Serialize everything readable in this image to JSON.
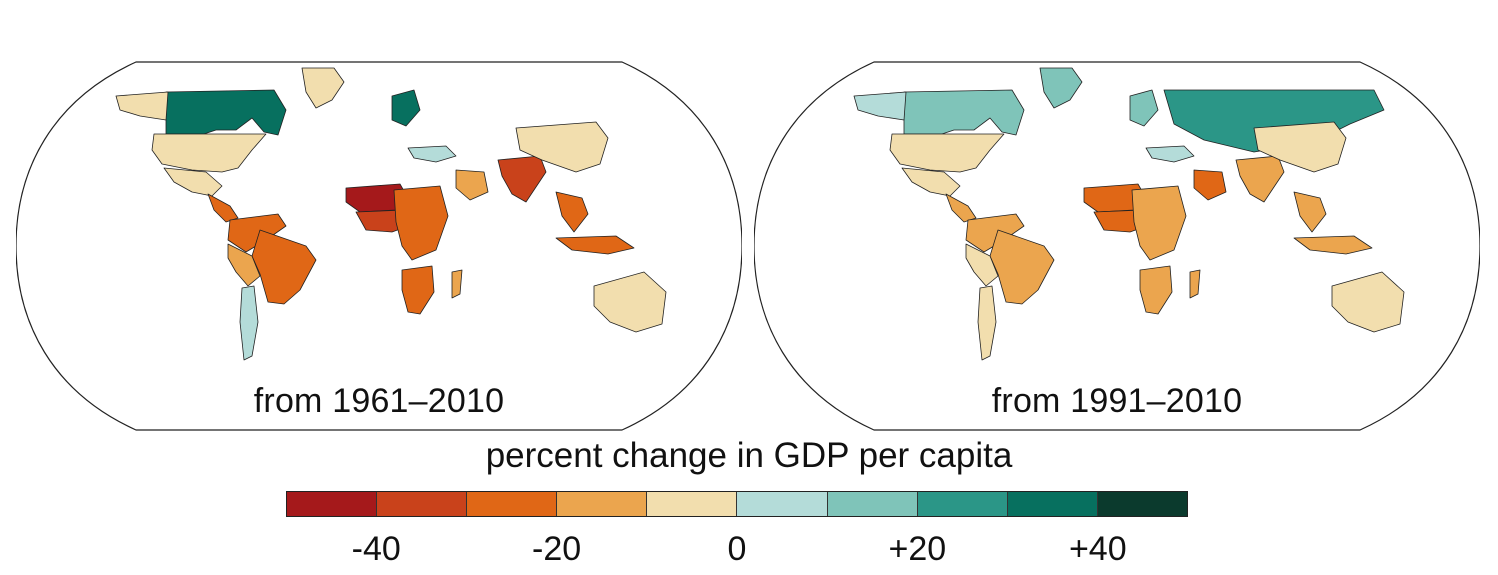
{
  "panels": [
    {
      "label": "from 1961–2010",
      "regions": [
        {
          "name": "Canada",
          "bin": 8
        },
        {
          "name": "Greenland",
          "bin": 4
        },
        {
          "name": "Alaska",
          "bin": 4
        },
        {
          "name": "United States",
          "bin": 4
        },
        {
          "name": "Mexico",
          "bin": 4
        },
        {
          "name": "Central America",
          "bin": 2
        },
        {
          "name": "Northern South America",
          "bin": 2
        },
        {
          "name": "Brazil",
          "bin": 2
        },
        {
          "name": "Andes",
          "bin": 3
        },
        {
          "name": "Chile/Argentina strip",
          "bin": 5
        },
        {
          "name": "Northern Europe",
          "bin": 8
        },
        {
          "name": "Southeast Europe",
          "bin": 5
        },
        {
          "name": "West Africa Sahel",
          "bin": 0
        },
        {
          "name": "West Africa coast",
          "bin": 1
        },
        {
          "name": "Central Africa",
          "bin": 2
        },
        {
          "name": "Southern Africa",
          "bin": 2
        },
        {
          "name": "Madagascar",
          "bin": 3
        },
        {
          "name": "Arabia",
          "bin": 3
        },
        {
          "name": "India",
          "bin": 1
        },
        {
          "name": "China",
          "bin": 4
        },
        {
          "name": "Southeast Asia",
          "bin": 2
        },
        {
          "name": "Indonesia",
          "bin": 2
        },
        {
          "name": "Australia",
          "bin": 4
        }
      ]
    },
    {
      "label": "from 1991–2010",
      "regions": [
        {
          "name": "Canada",
          "bin": 6
        },
        {
          "name": "Greenland",
          "bin": 6
        },
        {
          "name": "Alaska",
          "bin": 5
        },
        {
          "name": "United States",
          "bin": 4
        },
        {
          "name": "Mexico",
          "bin": 4
        },
        {
          "name": "Central America",
          "bin": 3
        },
        {
          "name": "Northern South America",
          "bin": 3
        },
        {
          "name": "Brazil",
          "bin": 3
        },
        {
          "name": "Andes",
          "bin": 4
        },
        {
          "name": "Chile/Argentina strip",
          "bin": 4
        },
        {
          "name": "Northern Europe",
          "bin": 6
        },
        {
          "name": "Southeast Europe",
          "bin": 5
        },
        {
          "name": "Russia",
          "bin": 7
        },
        {
          "name": "West Africa Sahel",
          "bin": 2
        },
        {
          "name": "West Africa coast",
          "bin": 2
        },
        {
          "name": "Central Africa",
          "bin": 3
        },
        {
          "name": "Southern Africa",
          "bin": 3
        },
        {
          "name": "Madagascar",
          "bin": 3
        },
        {
          "name": "Arabia",
          "bin": 2
        },
        {
          "name": "India",
          "bin": 3
        },
        {
          "name": "China",
          "bin": 4
        },
        {
          "name": "Southeast Asia",
          "bin": 3
        },
        {
          "name": "Indonesia",
          "bin": 3
        },
        {
          "name": "Australia",
          "bin": 4
        }
      ]
    }
  ],
  "legend": {
    "title": "percent change in GDP per capita",
    "colors": [
      "#a5191b",
      "#c9421b",
      "#e06716",
      "#eba54e",
      "#f2deae",
      "#b4dcd9",
      "#7fc4b9",
      "#2b9687",
      "#07705f",
      "#0b3a2d"
    ],
    "ticks": [
      {
        "label": "-40",
        "index": 1
      },
      {
        "label": "-20",
        "index": 3
      },
      {
        "label": "0",
        "index": 5
      },
      {
        "label": "+20",
        "index": 7
      },
      {
        "label": "+40",
        "index": 9
      }
    ]
  }
}
